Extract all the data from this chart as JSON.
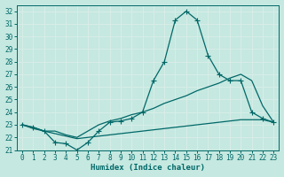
{
  "xlabel": "Humidex (Indice chaleur)",
  "xlim": [
    -0.5,
    23.5
  ],
  "ylim": [
    21,
    32.5
  ],
  "yticks": [
    21,
    22,
    23,
    24,
    25,
    26,
    27,
    28,
    29,
    30,
    31,
    32
  ],
  "xticks": [
    0,
    1,
    2,
    3,
    4,
    5,
    6,
    7,
    8,
    9,
    10,
    11,
    12,
    13,
    14,
    15,
    16,
    17,
    18,
    19,
    20,
    21,
    22,
    23
  ],
  "bg_color": "#c5e8e0",
  "grid_color": "#d8ede8",
  "line_color": "#006868",
  "series1": [
    23.0,
    22.8,
    22.5,
    21.6,
    21.5,
    21.0,
    21.6,
    22.5,
    23.2,
    23.3,
    23.5,
    24.0,
    26.5,
    28.0,
    31.3,
    32.0,
    31.3,
    28.5,
    27.0,
    26.5,
    26.5,
    24.0,
    23.5,
    23.2
  ],
  "series2": [
    23.0,
    22.8,
    22.5,
    22.5,
    22.2,
    22.0,
    22.5,
    23.0,
    23.3,
    23.5,
    23.8,
    24.0,
    24.3,
    24.7,
    25.0,
    25.3,
    25.7,
    26.0,
    26.3,
    26.7,
    27.0,
    26.5,
    24.5,
    23.2
  ],
  "series3": [
    23.0,
    22.7,
    22.5,
    22.3,
    22.1,
    21.9,
    22.0,
    22.1,
    22.2,
    22.3,
    22.4,
    22.5,
    22.6,
    22.7,
    22.8,
    22.9,
    23.0,
    23.1,
    23.2,
    23.3,
    23.4,
    23.4,
    23.4,
    23.2
  ]
}
